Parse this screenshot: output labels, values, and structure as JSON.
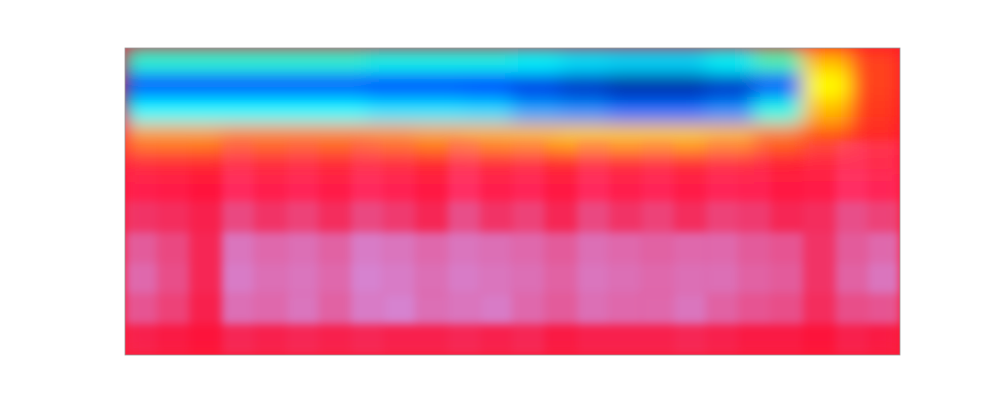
{
  "chart_data": {
    "type": "heatmap",
    "tick_labels": false,
    "zlim": [
      0,
      1
    ],
    "cells": [
      [
        0.42,
        0.42,
        0.42,
        0.42,
        0.42,
        0.4,
        0.4,
        0.4,
        0.38,
        0.36,
        0.35,
        0.35,
        0.38,
        0.45,
        0.7,
        0.9
      ],
      [
        0.2,
        0.2,
        0.2,
        0.2,
        0.2,
        0.18,
        0.18,
        0.16,
        0.12,
        0.08,
        0.04,
        0.04,
        0.08,
        0.2,
        0.6,
        0.9
      ],
      [
        0.38,
        0.38,
        0.38,
        0.38,
        0.38,
        0.36,
        0.36,
        0.35,
        0.3,
        0.28,
        0.25,
        0.25,
        0.28,
        0.4,
        0.7,
        0.92
      ],
      [
        0.75,
        0.75,
        0.78,
        0.78,
        0.78,
        0.76,
        0.74,
        0.72,
        0.7,
        0.68,
        0.68,
        0.68,
        0.7,
        0.8,
        0.88,
        0.95
      ],
      [
        0.96,
        0.96,
        0.96,
        0.96,
        0.96,
        0.96,
        0.96,
        0.96,
        0.96,
        0.96,
        0.96,
        0.96,
        0.96,
        0.97,
        0.98,
        0.98
      ],
      [
        1,
        1,
        1,
        1,
        1,
        1,
        1,
        1,
        1,
        1,
        1,
        1,
        1,
        1,
        1,
        1
      ],
      [
        1,
        1,
        1,
        1,
        1,
        1,
        1,
        1,
        1,
        1,
        1,
        1,
        1,
        1,
        1,
        1
      ],
      [
        1,
        1,
        1,
        1,
        1,
        1,
        1,
        1,
        1,
        1,
        1,
        1,
        1,
        1,
        1,
        1
      ],
      [
        1,
        1,
        1,
        1,
        1,
        1,
        1,
        1,
        1,
        1,
        1,
        1,
        1,
        1,
        1,
        1
      ],
      [
        1,
        1,
        1,
        1,
        1,
        1,
        1,
        1,
        1,
        1,
        1,
        1,
        1,
        1,
        1,
        1
      ],
      [
        1,
        1,
        1,
        1,
        1,
        1,
        1,
        1,
        1,
        1,
        1,
        1,
        1,
        1,
        1,
        1
      ],
      [
        1,
        1,
        1,
        1,
        1,
        1,
        1,
        1,
        1,
        1,
        1,
        1,
        1,
        1,
        1,
        1
      ]
    ],
    "spectrogram": [
      [
        0,
        0,
        0,
        0,
        0,
        0,
        0,
        0,
        0,
        0,
        0,
        0,
        0,
        0,
        0,
        0,
        0,
        0,
        0,
        0,
        0,
        0,
        0,
        0
      ],
      [
        0,
        0,
        0,
        0,
        0,
        0,
        0,
        0,
        0,
        0,
        0,
        0,
        0,
        0,
        0,
        0,
        0,
        0,
        0,
        0,
        0,
        0,
        0,
        0
      ],
      [
        0,
        0,
        0,
        0,
        0,
        0,
        0,
        0,
        0,
        0,
        0,
        0,
        0,
        0,
        0,
        0,
        0,
        0,
        0,
        0,
        0,
        0,
        0,
        0
      ],
      [
        0.2,
        0.15,
        0.1,
        0.35,
        0.2,
        0.3,
        0.15,
        0.35,
        0.25,
        0.1,
        0.4,
        0.2,
        0.3,
        0.1,
        0.35,
        0.2,
        0.3,
        0.15,
        0.3,
        0.25,
        0.1,
        0.2,
        0.4,
        0.3
      ],
      [
        0.25,
        0.2,
        0.1,
        0.4,
        0.25,
        0.35,
        0.2,
        0.4,
        0.3,
        0.15,
        0.45,
        0.25,
        0.35,
        0.15,
        0.4,
        0.25,
        0.35,
        0.2,
        0.35,
        0.3,
        0.15,
        0.2,
        0.45,
        0.35
      ],
      [
        0.3,
        0.25,
        0.15,
        0.45,
        0.3,
        0.4,
        0.25,
        0.45,
        0.35,
        0.2,
        0.5,
        0.3,
        0.4,
        0.2,
        0.45,
        0.3,
        0.4,
        0.25,
        0.4,
        0.35,
        0.2,
        0.25,
        0.5,
        0.4
      ],
      [
        0.6,
        0.45,
        0.2,
        0.8,
        0.7,
        0.75,
        0.65,
        0.85,
        0.8,
        0.7,
        0.8,
        0.75,
        0.7,
        0.6,
        0.75,
        0.7,
        0.65,
        0.7,
        0.7,
        0.6,
        0.55,
        0.3,
        0.6,
        0.7
      ],
      [
        0.7,
        0.5,
        0.2,
        0.85,
        0.75,
        0.8,
        0.7,
        0.9,
        0.85,
        0.75,
        0.85,
        0.8,
        0.75,
        0.65,
        0.8,
        0.75,
        0.7,
        0.75,
        0.75,
        0.65,
        0.6,
        0.3,
        0.65,
        0.8
      ],
      [
        0.55,
        0.4,
        0.15,
        0.75,
        0.7,
        0.8,
        0.65,
        0.85,
        0.9,
        0.75,
        0.8,
        0.85,
        0.7,
        0.6,
        0.75,
        0.7,
        0.7,
        0.8,
        0.65,
        0.55,
        0.5,
        0.25,
        0.5,
        0.55
      ],
      [
        0.15,
        0.1,
        0.05,
        0.2,
        0.15,
        0.2,
        0.15,
        0.2,
        0.15,
        0.15,
        0.2,
        0.15,
        0.2,
        0.1,
        0.15,
        0.15,
        0.15,
        0.2,
        0.15,
        0.1,
        0.1,
        0.05,
        0.15,
        0.1
      ]
    ]
  }
}
